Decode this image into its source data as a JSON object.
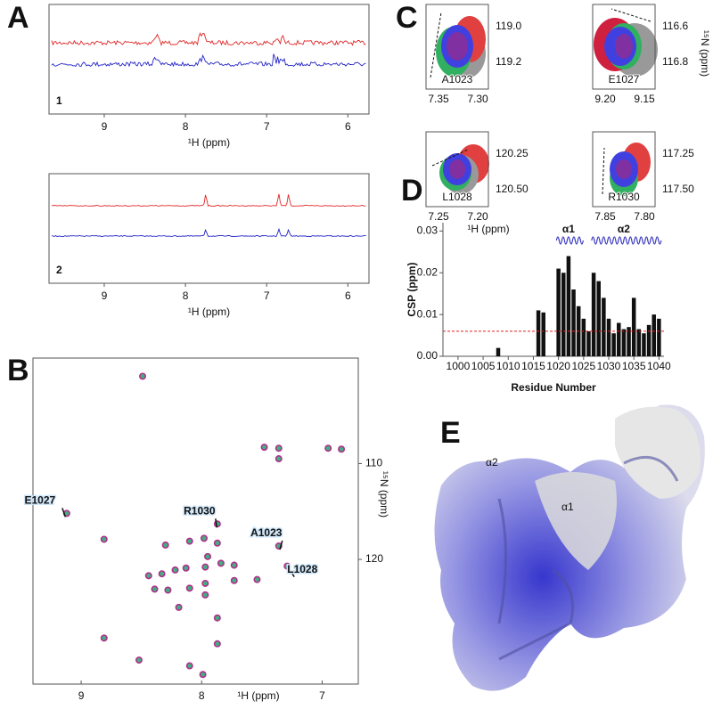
{
  "panel_labels": [
    "A",
    "B",
    "C",
    "D",
    "E"
  ],
  "chart_data": [
    {
      "type": "spectrum",
      "trace_label": "1",
      "xlabel": "¹H (ppm)",
      "xlim": [
        9.68,
        5.74
      ],
      "xticks": [
        9,
        8,
        7,
        6
      ],
      "colors": [
        "#e02828",
        "#2424c8"
      ],
      "noisy": true
    },
    {
      "type": "spectrum",
      "trace_label": "2",
      "xlabel": "¹H (ppm)",
      "xlim": [
        9.68,
        5.74
      ],
      "xticks": [
        9,
        8,
        7,
        6
      ],
      "colors": [
        "#e02828",
        "#2424c8"
      ],
      "noisy": false
    },
    {
      "type": "scatter",
      "xlabel": "¹H (ppm)",
      "ylabel": "¹⁵N (ppm)",
      "xlim": [
        9.4,
        6.7
      ],
      "ylim": [
        99,
        133
      ],
      "xticks": [
        9,
        8,
        7
      ],
      "yticks": [
        110,
        120
      ],
      "color": "#b0308c",
      "x": [
        8.49,
        7.48,
        7.36,
        7.36,
        6.95,
        6.84,
        9.12,
        7.87,
        7.36,
        7.29,
        8.81,
        8.3,
        8.1,
        7.98,
        7.87,
        7.95,
        7.84,
        7.73,
        7.97,
        8.13,
        8.22,
        8.33,
        8.44,
        7.97,
        7.73,
        7.54,
        8.1,
        8.28,
        8.39,
        7.97,
        8.19,
        7.87,
        7.87,
        8.1,
        8.52,
        7.99,
        8.81
      ],
      "y": [
        100.9,
        108.3,
        108.4,
        109.5,
        108.4,
        108.5,
        115.2,
        116.3,
        118.6,
        120.7,
        117.9,
        118.5,
        118.1,
        117.8,
        118.3,
        119.7,
        120.4,
        120.6,
        120.8,
        120.9,
        121.1,
        121.5,
        121.7,
        122.5,
        122.2,
        122.1,
        123.0,
        123.2,
        123.1,
        123.7,
        125.0,
        126.1,
        128.8,
        131.1,
        130.5,
        132.0,
        128.2
      ],
      "annotations": [
        {
          "text": "E1027",
          "x": 9.12,
          "y": 115.2
        },
        {
          "text": "R1030",
          "x": 7.87,
          "y": 116.3
        },
        {
          "text": "A1023",
          "x": 7.36,
          "y": 118.6
        },
        {
          "text": "L1028",
          "x": 7.29,
          "y": 120.7
        }
      ]
    },
    {
      "type": "bar",
      "ylabel": "CSP (ppm)",
      "xlabel": "Residue Number",
      "color": "#111111",
      "x": [
        1008,
        1016,
        1017,
        1020,
        1021,
        1022,
        1023,
        1024,
        1025,
        1026,
        1027,
        1028,
        1029,
        1030,
        1031,
        1032,
        1033,
        1034,
        1035,
        1036,
        1037,
        1038,
        1039,
        1040
      ],
      "values": [
        0.002,
        0.011,
        0.0105,
        0.021,
        0.02,
        0.024,
        0.016,
        0.012,
        0.009,
        0.006,
        0.02,
        0.018,
        0.014,
        0.009,
        0.0055,
        0.008,
        0.0065,
        0.007,
        0.014,
        0.0065,
        0.0055,
        0.0075,
        0.01,
        0.009
      ],
      "xlim": [
        997,
        1041
      ],
      "xticks": [
        1000,
        1005,
        1010,
        1015,
        1020,
        1025,
        1030,
        1035,
        1040
      ],
      "ylim": [
        0,
        0.032
      ],
      "yticks": [
        {
          "value": 0,
          "label": "0.00"
        },
        {
          "value": 0.01,
          "label": "0.01"
        },
        {
          "value": 0.02,
          "label": "0.02"
        },
        {
          "value": 0.03,
          "label": "0.03"
        }
      ],
      "threshold": 0.006,
      "threshold_color": "#e02020",
      "helices": [
        {
          "label": "α1",
          "start": 1020,
          "end": 1024
        },
        {
          "label": "α2",
          "start": 1027,
          "end": 1039
        }
      ],
      "helix_color": "#3a3ac0"
    }
  ],
  "insets": {
    "xlabel": "¹H (ppm)",
    "ylabel": "¹⁵N (ppm)",
    "panels": [
      {
        "label": "A1023",
        "xticks": [
          "7.35",
          "7.30"
        ],
        "yticks": [
          "119.0",
          "119.2"
        ]
      },
      {
        "label": "E1027",
        "xticks": [
          "9.20",
          "9.15"
        ],
        "yticks": [
          "116.6",
          "116.8"
        ]
      },
      {
        "label": "L1028",
        "xticks": [
          "7.25",
          "7.20"
        ],
        "yticks": [
          "120.25",
          "120.50"
        ]
      },
      {
        "label": "R1030",
        "xticks": [
          "7.85",
          "7.80"
        ],
        "yticks": [
          "117.25",
          "117.50"
        ]
      }
    ]
  },
  "structure_labels": [
    "α2",
    "α1"
  ]
}
